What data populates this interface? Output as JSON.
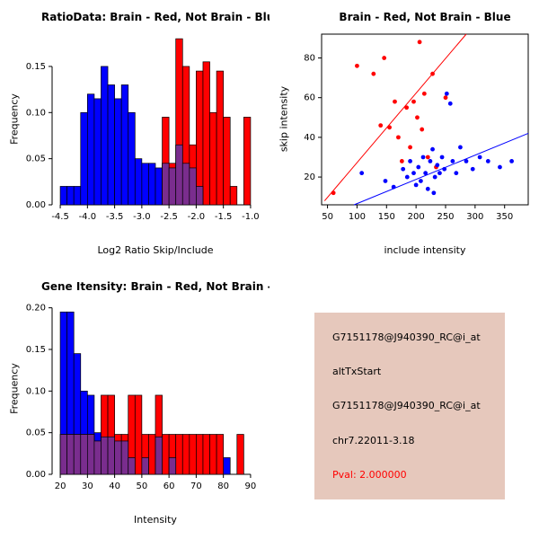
{
  "colors": {
    "brain": "#ff0000",
    "not_brain": "#0000ff",
    "overlap": "#7a2d8e",
    "axis": "#000000",
    "background": "#ffffff",
    "info_box_bg": "#e6c8bc",
    "pval": "#ff0000"
  },
  "chart_data": [
    {
      "id": "ratio-histogram",
      "type": "bar",
      "title": "RatioData: Brain - Red, Not Brain - Blue",
      "xlabel": "Log2 Ratio Skip/Include",
      "ylabel": "Frequency",
      "xlim": [
        -4.65,
        -0.85
      ],
      "ylim": [
        0,
        0.185
      ],
      "grid": false,
      "legend": "none",
      "xticks": [
        {
          "v": -4.5,
          "label": "-4.5"
        },
        {
          "v": -4.0,
          "label": "-4.0"
        },
        {
          "v": -3.5,
          "label": "-3.5"
        },
        {
          "v": -3.0,
          "label": "-3.0"
        },
        {
          "v": -2.5,
          "label": "-2.5"
        },
        {
          "v": -2.0,
          "label": "-2.0"
        },
        {
          "v": -1.5,
          "label": "-1.5"
        },
        {
          "v": -1.0,
          "label": "-1.0"
        }
      ],
      "yticks": [
        {
          "v": 0,
          "label": "0.00"
        },
        {
          "v": 0.05,
          "label": "0.05"
        },
        {
          "v": 0.1,
          "label": "0.10"
        },
        {
          "v": 0.15,
          "label": "0.15"
        }
      ],
      "bin_width": 0.125,
      "overlap_color": "#7a2d8e",
      "series": [
        {
          "name": "Not Brain",
          "color": "#0000ff",
          "bars": [
            [
              -4.5,
              0.02
            ],
            [
              -4.375,
              0.02
            ],
            [
              -4.25,
              0.02
            ],
            [
              -4.125,
              0.1
            ],
            [
              -4.0,
              0.12
            ],
            [
              -3.875,
              0.115
            ],
            [
              -3.75,
              0.15
            ],
            [
              -3.625,
              0.13
            ],
            [
              -3.5,
              0.115
            ],
            [
              -3.375,
              0.13
            ],
            [
              -3.25,
              0.1
            ],
            [
              -3.125,
              0.05
            ],
            [
              -3.0,
              0.045
            ],
            [
              -2.875,
              0.045
            ],
            [
              -2.75,
              0.04
            ],
            [
              -2.625,
              0.045
            ],
            [
              -2.5,
              0.04
            ],
            [
              -2.375,
              0.065
            ],
            [
              -2.25,
              0.045
            ],
            [
              -2.125,
              0.04
            ],
            [
              -2.0,
              0.02
            ]
          ]
        },
        {
          "name": "Brain",
          "color": "#ff0000",
          "bars": [
            [
              -2.625,
              0.095
            ],
            [
              -2.5,
              0.045
            ],
            [
              -2.375,
              0.18
            ],
            [
              -2.25,
              0.15
            ],
            [
              -2.125,
              0.065
            ],
            [
              -2.0,
              0.145
            ],
            [
              -1.875,
              0.155
            ],
            [
              -1.75,
              0.1
            ],
            [
              -1.625,
              0.145
            ],
            [
              -1.5,
              0.095
            ],
            [
              -1.375,
              0.02
            ],
            [
              -1.125,
              0.095
            ]
          ]
        }
      ]
    },
    {
      "id": "intensity-scatter",
      "type": "scatter",
      "title": "Brain - Red, Not Brain - Blue",
      "xlabel": "include intensity",
      "ylabel": "skip intensity",
      "xlim": [
        40,
        390
      ],
      "ylim": [
        6,
        92
      ],
      "grid": false,
      "legend": "none",
      "xticks": [
        {
          "v": 50,
          "label": "50"
        },
        {
          "v": 100,
          "label": "100"
        },
        {
          "v": 150,
          "label": "150"
        },
        {
          "v": 200,
          "label": "200"
        },
        {
          "v": 250,
          "label": "250"
        },
        {
          "v": 300,
          "label": "300"
        },
        {
          "v": 350,
          "label": "350"
        }
      ],
      "yticks": [
        {
          "v": 20,
          "label": "20"
        },
        {
          "v": 40,
          "label": "40"
        },
        {
          "v": 60,
          "label": "60"
        },
        {
          "v": 80,
          "label": "80"
        }
      ],
      "series": [
        {
          "name": "Brain",
          "color": "#ff0000",
          "points": [
            [
              60,
              12
            ],
            [
              100,
              76
            ],
            [
              128,
              72
            ],
            [
              146,
              80
            ],
            [
              155,
              45
            ],
            [
              164,
              58
            ],
            [
              170,
              40
            ],
            [
              176,
              28
            ],
            [
              184,
              55
            ],
            [
              190,
              35
            ],
            [
              196,
              58
            ],
            [
              202,
              50
            ],
            [
              206,
              88
            ],
            [
              214,
              62
            ],
            [
              220,
              30
            ],
            [
              228,
              72
            ],
            [
              234,
              25
            ],
            [
              250,
              60
            ],
            [
              140,
              46
            ],
            [
              210,
              44
            ]
          ],
          "line": [
            [
              45,
              8
            ],
            [
              285,
              92
            ]
          ]
        },
        {
          "name": "Not Brain",
          "color": "#0000ff",
          "points": [
            [
              108,
              22
            ],
            [
              148,
              18
            ],
            [
              162,
              15
            ],
            [
              178,
              24
            ],
            [
              185,
              20
            ],
            [
              190,
              28
            ],
            [
              196,
              22
            ],
            [
              200,
              16
            ],
            [
              204,
              25
            ],
            [
              208,
              18
            ],
            [
              212,
              30
            ],
            [
              216,
              22
            ],
            [
              220,
              14
            ],
            [
              224,
              28
            ],
            [
              228,
              34
            ],
            [
              232,
              20
            ],
            [
              236,
              26
            ],
            [
              240,
              22
            ],
            [
              244,
              30
            ],
            [
              248,
              24
            ],
            [
              252,
              62
            ],
            [
              258,
              57
            ],
            [
              262,
              28
            ],
            [
              268,
              22
            ],
            [
              275,
              35
            ],
            [
              285,
              28
            ],
            [
              296,
              24
            ],
            [
              308,
              30
            ],
            [
              322,
              28
            ],
            [
              342,
              25
            ],
            [
              362,
              28
            ],
            [
              230,
              12
            ]
          ],
          "line": [
            [
              95,
              6
            ],
            [
              390,
              42
            ]
          ]
        }
      ]
    },
    {
      "id": "gene-intensity-histogram",
      "type": "bar",
      "title": "Gene Itensity: Brain - Red, Not Brain - Blue",
      "xlabel": "Intensity",
      "ylabel": "Frequency",
      "xlim": [
        17,
        93
      ],
      "ylim": [
        0,
        0.205
      ],
      "grid": false,
      "legend": "none",
      "xticks": [
        {
          "v": 20,
          "label": "20"
        },
        {
          "v": 30,
          "label": "30"
        },
        {
          "v": 40,
          "label": "40"
        },
        {
          "v": 50,
          "label": "50"
        },
        {
          "v": 60,
          "label": "60"
        },
        {
          "v": 70,
          "label": "70"
        },
        {
          "v": 80,
          "label": "80"
        },
        {
          "v": 90,
          "label": "90"
        }
      ],
      "yticks": [
        {
          "v": 0,
          "label": "0.00"
        },
        {
          "v": 0.05,
          "label": "0.05"
        },
        {
          "v": 0.1,
          "label": "0.10"
        },
        {
          "v": 0.15,
          "label": "0.15"
        },
        {
          "v": 0.2,
          "label": "0.20"
        }
      ],
      "bin_width": 2.5,
      "overlap_color": "#7a2d8e",
      "series": [
        {
          "name": "Not Brain",
          "color": "#0000ff",
          "bars": [
            [
              20,
              0.195
            ],
            [
              22.5,
              0.195
            ],
            [
              25,
              0.145
            ],
            [
              27.5,
              0.1
            ],
            [
              30,
              0.095
            ],
            [
              32.5,
              0.05
            ],
            [
              35,
              0.045
            ],
            [
              37.5,
              0.045
            ],
            [
              40,
              0.04
            ],
            [
              42.5,
              0.04
            ],
            [
              45,
              0.02
            ],
            [
              50,
              0.02
            ],
            [
              55,
              0.045
            ],
            [
              60,
              0.02
            ],
            [
              80,
              0.02
            ]
          ]
        },
        {
          "name": "Brain",
          "color": "#ff0000",
          "bars": [
            [
              20,
              0.048
            ],
            [
              22.5,
              0.048
            ],
            [
              25,
              0.048
            ],
            [
              27.5,
              0.048
            ],
            [
              30,
              0.048
            ],
            [
              32.5,
              0.04
            ],
            [
              35,
              0.095
            ],
            [
              37.5,
              0.095
            ],
            [
              40,
              0.048
            ],
            [
              42.5,
              0.048
            ],
            [
              45,
              0.095
            ],
            [
              47.5,
              0.095
            ],
            [
              50,
              0.048
            ],
            [
              52.5,
              0.048
            ],
            [
              55,
              0.095
            ],
            [
              57.5,
              0.048
            ],
            [
              60,
              0.048
            ],
            [
              62.5,
              0.048
            ],
            [
              65,
              0.048
            ],
            [
              67.5,
              0.048
            ],
            [
              70,
              0.048
            ],
            [
              72.5,
              0.048
            ],
            [
              75,
              0.048
            ],
            [
              77.5,
              0.048
            ],
            [
              85,
              0.048
            ]
          ]
        }
      ]
    }
  ],
  "info_box": {
    "box_style": "background-color:#e6c8bc;",
    "lines": [
      {
        "text": "G7151178@J940390_RC@i_at",
        "style": "color:#000000"
      },
      {
        "text": "altTxStart",
        "style": "color:#000000"
      },
      {
        "text": "G7151178@J940390_RC@i_at",
        "style": "color:#000000"
      },
      {
        "text": "chr7.22011-3.18",
        "style": "color:#000000"
      },
      {
        "text": "Pval: 2.000000",
        "style": "color:#ff0000"
      }
    ]
  }
}
